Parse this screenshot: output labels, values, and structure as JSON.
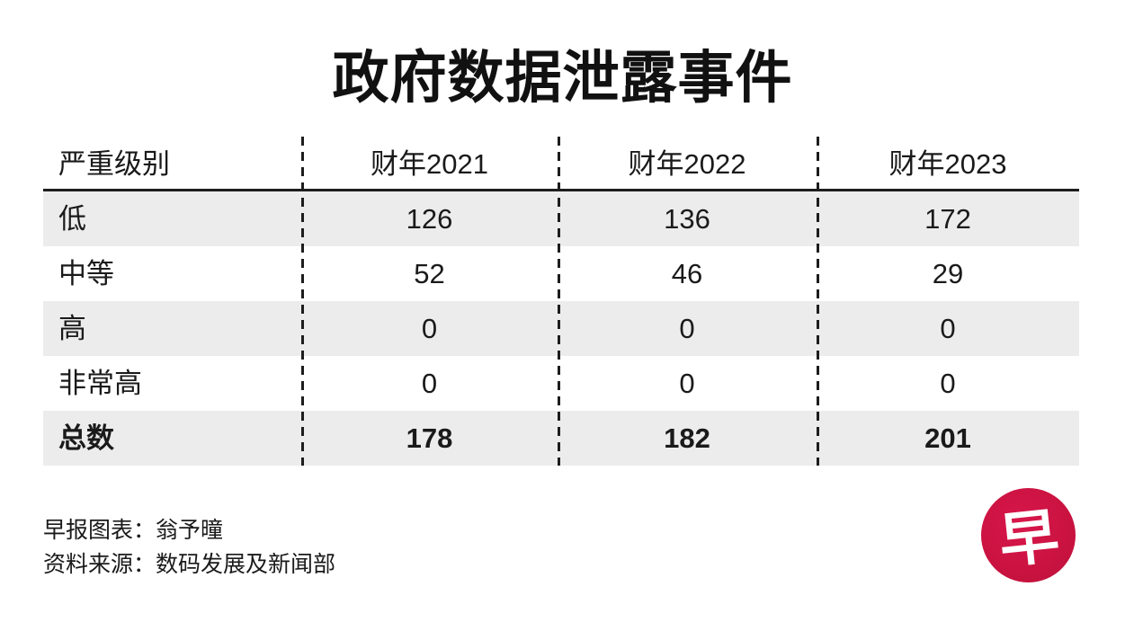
{
  "title": "政府数据泄露事件",
  "table": {
    "columns": [
      "严重级别",
      "财年2021",
      "财年2022",
      "财年2023"
    ],
    "rows": [
      {
        "label": "低",
        "values": [
          "126",
          "136",
          "172"
        ]
      },
      {
        "label": "中等",
        "values": [
          "52",
          "46",
          "29"
        ]
      },
      {
        "label": "高",
        "values": [
          "0",
          "0",
          "0"
        ]
      },
      {
        "label": "非常高",
        "values": [
          "0",
          "0",
          "0"
        ]
      },
      {
        "label": "总数",
        "values": [
          "178",
          "182",
          "201"
        ]
      }
    ]
  },
  "footer": {
    "credit": "早报图表：翁予曈",
    "source": "资料来源：数码发展及新闻部"
  },
  "logo": {
    "char": "早",
    "brand_color": "#cb1341"
  },
  "colors": {
    "row_band": "#ececec",
    "line": "#1d1d1d",
    "text": "#1a1a1a"
  },
  "chart_data": {
    "type": "table",
    "title": "政府数据泄露事件",
    "columns": [
      "严重级别",
      "财年2021",
      "财年2022",
      "财年2023"
    ],
    "rows": [
      [
        "低",
        126,
        136,
        172
      ],
      [
        "中等",
        52,
        46,
        29
      ],
      [
        "高",
        0,
        0,
        0
      ],
      [
        "非常高",
        0,
        0,
        0
      ],
      [
        "总数",
        178,
        182,
        201
      ]
    ],
    "notes": "总数 row is the bold totals row; alternating gray/white row bands; dashed vertical column separators",
    "credit": "早报图表：翁予曈",
    "source": "资料来源：数码发展及新闻部"
  }
}
